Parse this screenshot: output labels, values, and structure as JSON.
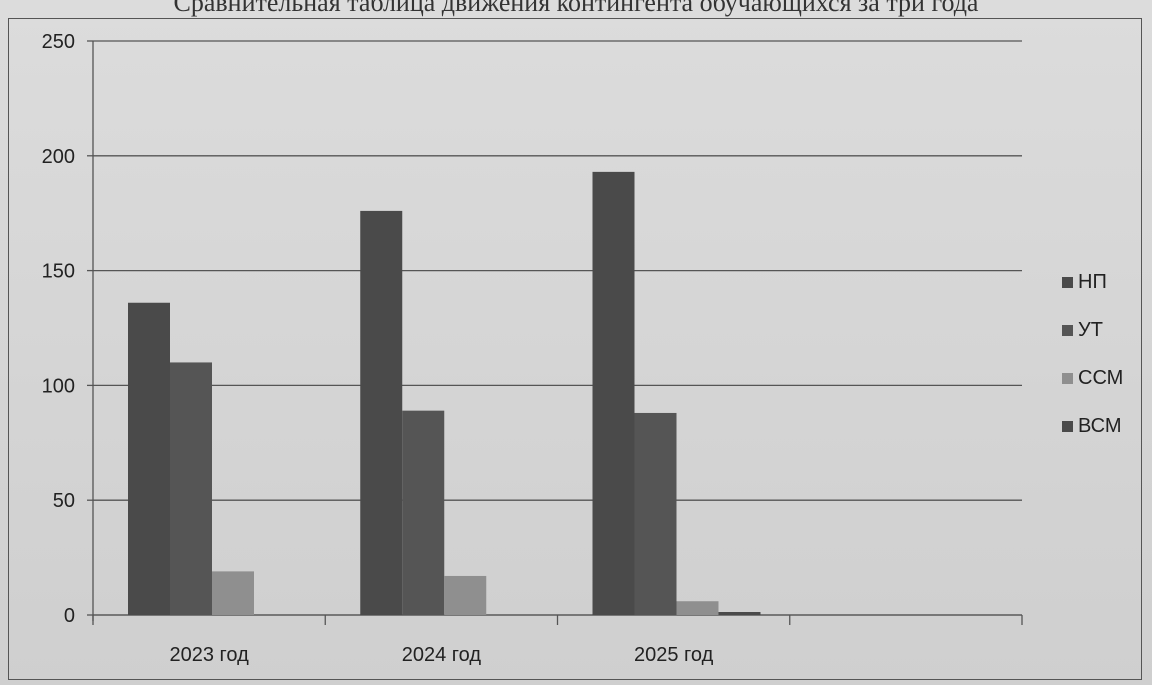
{
  "chart_data": {
    "type": "bar",
    "title": "Сравнительная таблица движения контингента обучающихся за три года",
    "categories": [
      "2023 год",
      "2024 год",
      "2025 год",
      ""
    ],
    "series": [
      {
        "name": "НП",
        "values": [
          136,
          176,
          193,
          null
        ],
        "color": "#4a4a4a"
      },
      {
        "name": "УТ",
        "values": [
          110,
          89,
          88,
          null
        ],
        "color": "#555555"
      },
      {
        "name": "ССМ",
        "values": [
          19,
          17,
          6,
          null
        ],
        "color": "#8f8f8f"
      },
      {
        "name": "ВСМ",
        "values": [
          0,
          0,
          1,
          null
        ],
        "color": "#4a4a4a"
      }
    ],
    "ylim": [
      0,
      250
    ],
    "yticks": [
      0,
      50,
      100,
      150,
      200,
      250
    ],
    "grid": true,
    "legend_position": "right",
    "xlabel": "",
    "ylabel": ""
  }
}
